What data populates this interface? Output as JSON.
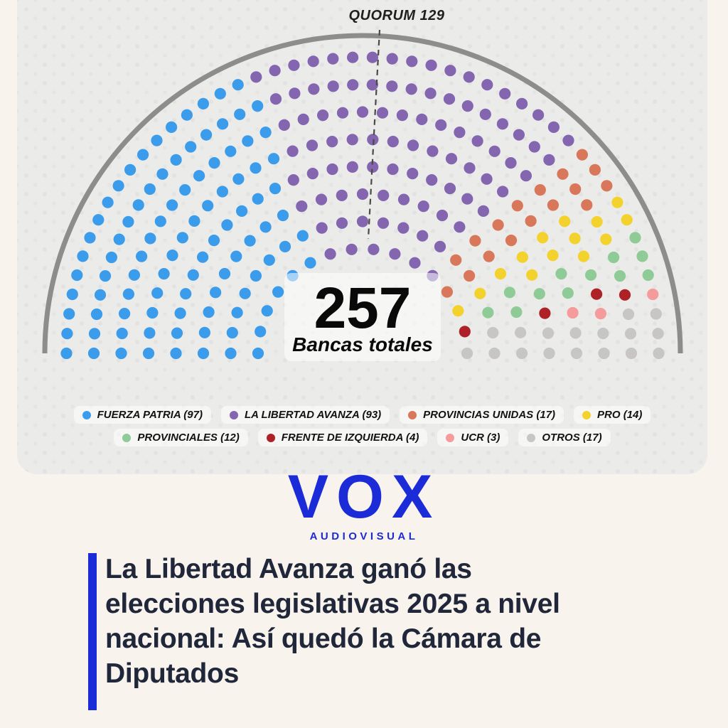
{
  "chart_data": {
    "type": "parliament",
    "total_seats": 257,
    "total_seats_label": "257",
    "total_seats_caption": "Bancas totales",
    "quorum_label": "QUORUM 129",
    "quorum_seats": 129,
    "seat_rows_inner_to_outer": [
      16,
      21,
      25,
      30,
      34,
      39,
      44,
      48
    ],
    "arc_color": "#8d8d8d",
    "series": [
      {
        "name": "FUERZA PATRIA",
        "seats": 97,
        "color": "#3b9ceb",
        "legend_label": "FUERZA PATRIA (97)"
      },
      {
        "name": "LA LIBERTAD AVANZA",
        "seats": 93,
        "color": "#8365b0",
        "legend_label": "LA LIBERTAD AVANZA (93)"
      },
      {
        "name": "PROVINCIAS UNIDAS",
        "seats": 17,
        "color": "#d9775a",
        "legend_label": "PROVINCIAS UNIDAS (17)"
      },
      {
        "name": "PRO",
        "seats": 14,
        "color": "#f4d22e",
        "legend_label": "PRO (14)"
      },
      {
        "name": "PROVINCIALES",
        "seats": 12,
        "color": "#8fcb96",
        "legend_label": "PROVINCIALES (12)"
      },
      {
        "name": "FRENTE DE IZQUIERDA",
        "seats": 4,
        "color": "#ae2127",
        "legend_label": "FRENTE DE IZQUIERDA (4)"
      },
      {
        "name": "UCR",
        "seats": 3,
        "color": "#f59b9b",
        "legend_label": "UCR (3)"
      },
      {
        "name": "OTROS",
        "seats": 17,
        "color": "#c7c6c5",
        "legend_label": "OTROS (17)"
      }
    ],
    "legend_rows": [
      [
        0,
        1,
        2,
        3
      ],
      [
        4,
        5,
        6,
        7
      ]
    ]
  },
  "branding": {
    "logo_text": "VOX",
    "tagline": "AUDIOVISUAL",
    "brand_color": "#1b2bd8"
  },
  "headline": {
    "text": "La Libertad Avanza ganó las elecciones legislativas 2025 a nivel nacional: Así quedó la Cámara de Diputados",
    "lines": [
      "La Libertad Avanza ganó las",
      "elecciones legislativas 2025 a nivel",
      "nacional: Así quedó la Cámara de",
      "Diputados"
    ],
    "accent_color": "#1b2bd8",
    "text_color": "#20273a"
  }
}
